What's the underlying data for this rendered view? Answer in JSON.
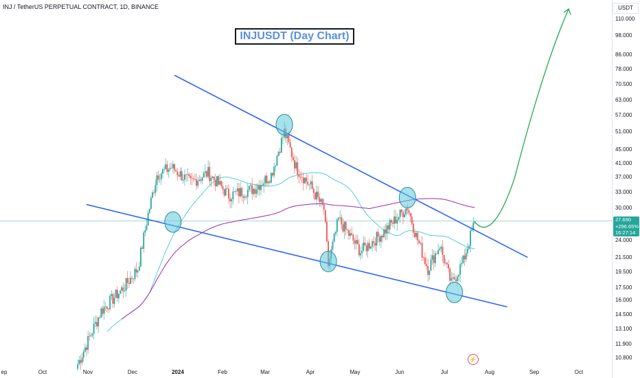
{
  "header": {
    "symbol_line": "INJ / TetherUS PERPETUAL CONTRACT, 1D, BINANCE"
  },
  "title": "INJUSDT (Day Chart)",
  "axis": {
    "currency": "USDT",
    "y_ticks": [
      "110.000",
      "98.000",
      "86.000",
      "78.000",
      "70.500",
      "63.000",
      "57.000",
      "51.000",
      "45.000",
      "41.000",
      "37.000",
      "33.000",
      "30.000",
      "24.000",
      "21.500",
      "19.500",
      "17.500",
      "16.000",
      "14.500",
      "13.100",
      "11.900",
      "10.800"
    ],
    "x_ticks": [
      {
        "label": "ep",
        "bold": false
      },
      {
        "label": "Oct",
        "bold": false
      },
      {
        "label": "Nov",
        "bold": false
      },
      {
        "label": "Dec",
        "bold": false
      },
      {
        "label": "2024",
        "bold": true
      },
      {
        "label": "Feb",
        "bold": false
      },
      {
        "label": "Mar",
        "bold": false
      },
      {
        "label": "Apr",
        "bold": false
      },
      {
        "label": "May",
        "bold": false
      },
      {
        "label": "Jun",
        "bold": false
      },
      {
        "label": "Jul",
        "bold": false
      },
      {
        "label": "Aug",
        "bold": false
      },
      {
        "label": "Sep",
        "bold": false
      },
      {
        "label": "Oct",
        "bold": false
      }
    ]
  },
  "last_price": {
    "price": "27.690",
    "change": "+296.65%",
    "countdown": "16:27:14"
  },
  "colors": {
    "up": "#26a69a",
    "down": "#ef5350",
    "wedge": "#2962ff",
    "ma_fast": "#4dd0d6",
    "ma_slow": "#9c27b0",
    "projection": "#22a94f",
    "circle_fill": "#5ec8d8",
    "price_line": "#26a69a"
  },
  "icons": {
    "alert": "lightning-icon"
  },
  "chart_data": {
    "type": "candlestick",
    "symbol": "INJ / TetherUS PERPETUAL CONTRACT",
    "interval": "1D",
    "exchange": "BINANCE",
    "title": "INJUSDT (Day Chart)",
    "y_scale": "log",
    "ylim": [
      10.3,
      125
    ],
    "x_range": [
      "2023-09-01",
      "2024-10-15"
    ],
    "close_path": [
      {
        "date": "2023-10-25",
        "close": 10.4
      },
      {
        "date": "2023-11-10",
        "close": 15.0
      },
      {
        "date": "2023-11-25",
        "close": 17.5
      },
      {
        "date": "2023-12-05",
        "close": 20.0
      },
      {
        "date": "2023-12-12",
        "close": 29.0
      },
      {
        "date": "2023-12-18",
        "close": 38.0
      },
      {
        "date": "2023-12-28",
        "close": 40.0
      },
      {
        "date": "2024-01-10",
        "close": 36.0
      },
      {
        "date": "2024-01-22",
        "close": 38.5
      },
      {
        "date": "2024-02-05",
        "close": 33.0
      },
      {
        "date": "2024-02-22",
        "close": 34.5
      },
      {
        "date": "2024-03-05",
        "close": 38.0
      },
      {
        "date": "2024-03-14",
        "close": 51.0
      },
      {
        "date": "2024-03-22",
        "close": 40.0
      },
      {
        "date": "2024-04-01",
        "close": 35.0
      },
      {
        "date": "2024-04-10",
        "close": 30.0
      },
      {
        "date": "2024-04-13",
        "close": 20.5
      },
      {
        "date": "2024-04-20",
        "close": 28.0
      },
      {
        "date": "2024-05-05",
        "close": 22.5
      },
      {
        "date": "2024-05-20",
        "close": 25.5
      },
      {
        "date": "2024-06-06",
        "close": 30.5
      },
      {
        "date": "2024-06-12",
        "close": 25.0
      },
      {
        "date": "2024-06-20",
        "close": 20.0
      },
      {
        "date": "2024-06-28",
        "close": 23.5
      },
      {
        "date": "2024-07-06",
        "close": 18.0
      },
      {
        "date": "2024-07-14",
        "close": 21.0
      },
      {
        "date": "2024-07-22",
        "close": 27.69
      }
    ],
    "indicators": [
      {
        "kind": "moving-average",
        "color": "cyan"
      },
      {
        "kind": "moving-average",
        "color": "purple"
      }
    ],
    "annotations": {
      "falling_wedge": {
        "upper": [
          {
            "date": "2023-12-30",
            "price": 75.0
          },
          {
            "date": "2024-08-27",
            "price": 21.6
          }
        ],
        "lower": [
          {
            "date": "2023-10-31",
            "price": 31.0
          },
          {
            "date": "2024-08-13",
            "price": 15.4
          }
        ]
      },
      "touch_circles": [
        {
          "date": "2023-12-29",
          "price": 27.5
        },
        {
          "date": "2024-03-14",
          "price": 53.5
        },
        {
          "date": "2024-04-13",
          "price": 21.0
        },
        {
          "date": "2024-06-06",
          "price": 32.5
        },
        {
          "date": "2024-07-08",
          "price": 17.0
        }
      ],
      "projection_arrow": {
        "color": "green",
        "path": [
          {
            "date": "2024-07-22",
            "price": 27.5
          },
          {
            "date": "2024-08-03",
            "price": 25.2
          },
          {
            "date": "2024-08-18",
            "price": 37.0
          },
          {
            "date": "2024-09-07",
            "price": 80.0
          },
          {
            "date": "2024-09-24",
            "price": 118.0
          }
        ]
      },
      "price_line": 27.69
    }
  }
}
